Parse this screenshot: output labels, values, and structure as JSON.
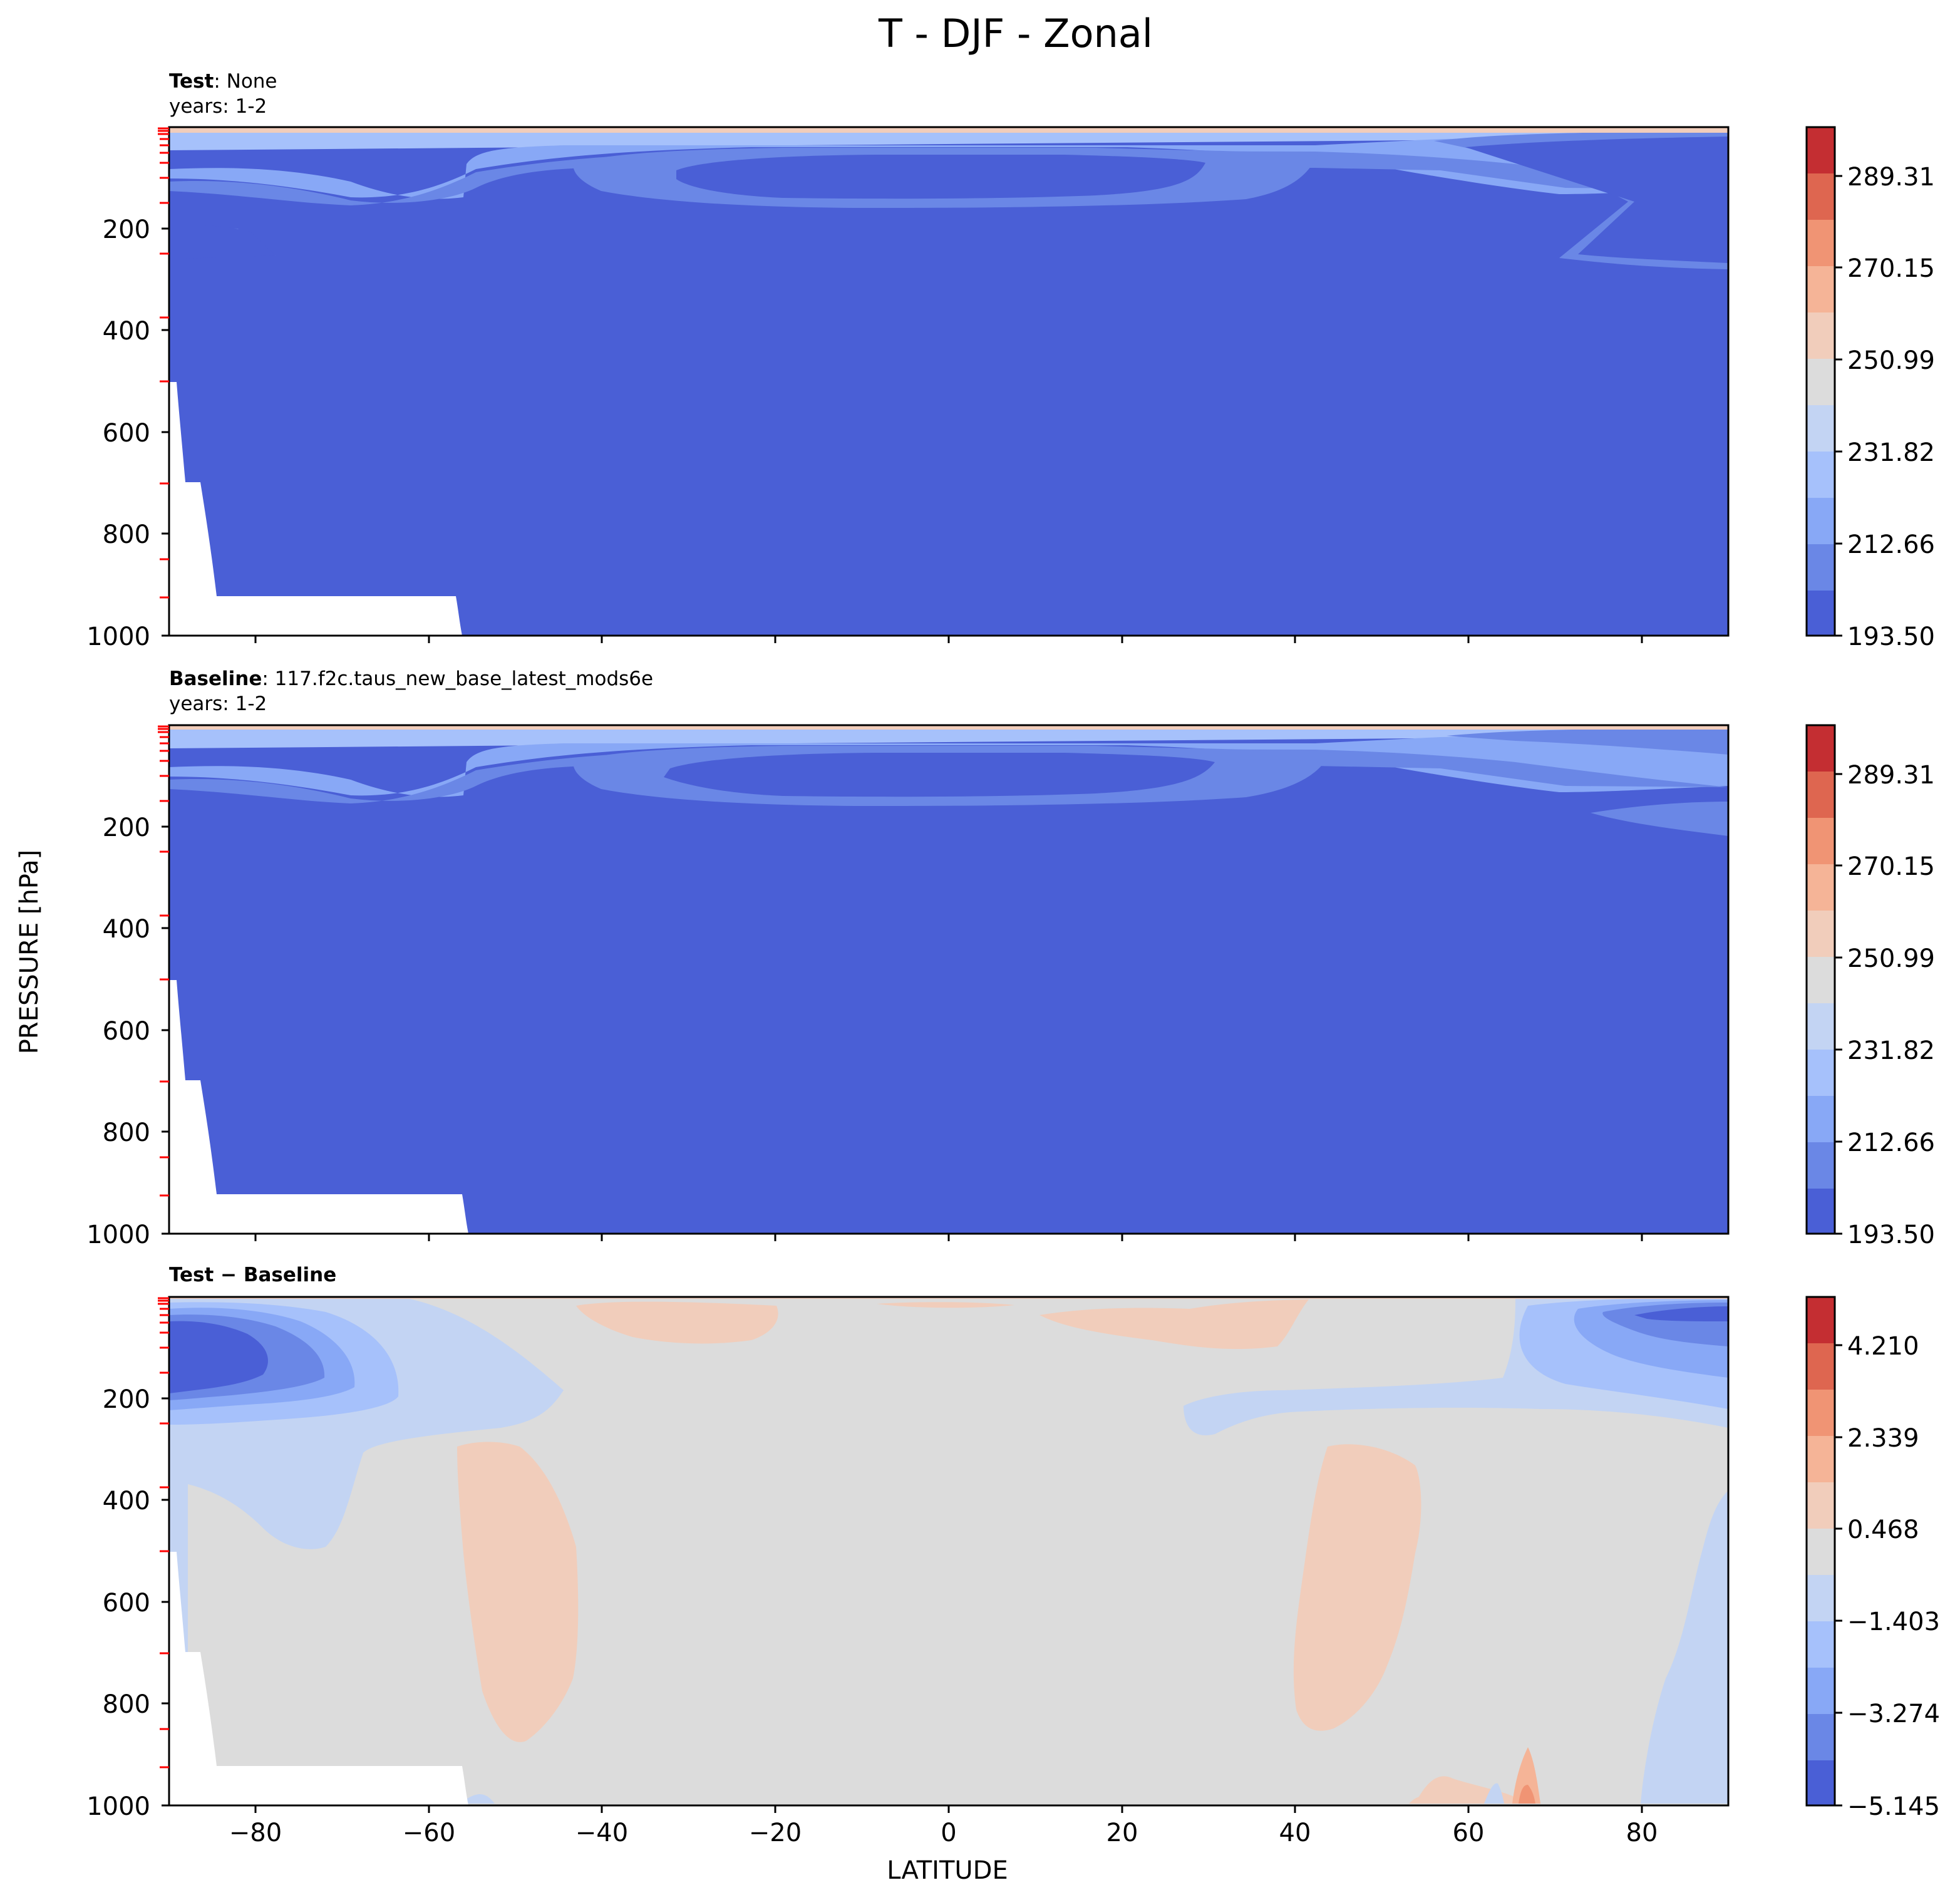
{
  "figure": {
    "title": "T - DJF - Zonal",
    "ylabel": "PRESSURE [hPa]",
    "xlabel": "LATITUDE"
  },
  "palette": [
    "#4a5fd6",
    "#6a87e6",
    "#88a8f6",
    "#a6c1fb",
    "#c3d4f3",
    "#dcdcdc",
    "#f1cdbb",
    "#f5b497",
    "#f09474",
    "#de6650",
    "#c42e32"
  ],
  "chart_data": [
    {
      "type": "contour",
      "name": "test",
      "header_bold": "Test",
      "header_rest": ": None",
      "header_years": "years: 1-2",
      "xlim": [
        -90,
        90
      ],
      "ylim": [
        1000,
        0
      ],
      "xticks": [
        "−80",
        "−60",
        "−40",
        "−20",
        "0",
        "20",
        "40",
        "60",
        "80"
      ],
      "yticks": [
        "200",
        "400",
        "600",
        "800",
        "1000"
      ],
      "levels": [
        193.5,
        202.0,
        212.66,
        222.0,
        231.82,
        241.0,
        250.99,
        260.0,
        270.15,
        280.0,
        289.31,
        299.0
      ],
      "colorbar_labels": [
        "289.31",
        "270.15",
        "250.99",
        "231.82",
        "212.66",
        "193.50"
      ]
    },
    {
      "type": "contour",
      "name": "baseline",
      "header_bold": "Baseline",
      "header_rest": ": 117.f2c.taus_new_base_latest_mods6e",
      "header_years": "years: 1-2",
      "xlim": [
        -90,
        90
      ],
      "ylim": [
        1000,
        0
      ],
      "xticks": [
        "−80",
        "−60",
        "−40",
        "−20",
        "0",
        "20",
        "40",
        "60",
        "80"
      ],
      "yticks": [
        "200",
        "400",
        "600",
        "800",
        "1000"
      ],
      "levels": [
        193.5,
        202.0,
        212.66,
        222.0,
        231.82,
        241.0,
        250.99,
        260.0,
        270.15,
        280.0,
        289.31,
        299.0
      ],
      "colorbar_labels": [
        "289.31",
        "270.15",
        "250.99",
        "231.82",
        "212.66",
        "193.50"
      ]
    },
    {
      "type": "contour",
      "name": "difference",
      "header_bold": "Test − Baseline",
      "xlim": [
        -90,
        90
      ],
      "ylim": [
        1000,
        0
      ],
      "xticks": [
        "−80",
        "−60",
        "−40",
        "−20",
        "0",
        "20",
        "40",
        "60",
        "80"
      ],
      "yticks": [
        "200",
        "400",
        "600",
        "800",
        "1000"
      ],
      "levels": [
        -5.145,
        -4.2,
        -3.274,
        -2.3,
        -1.403,
        -0.5,
        0.468,
        1.4,
        2.339,
        3.3,
        4.21,
        5.1
      ],
      "colorbar_labels": [
        "4.210",
        "2.339",
        "0.468",
        "−1.403",
        "−3.274",
        "−5.145"
      ]
    }
  ]
}
